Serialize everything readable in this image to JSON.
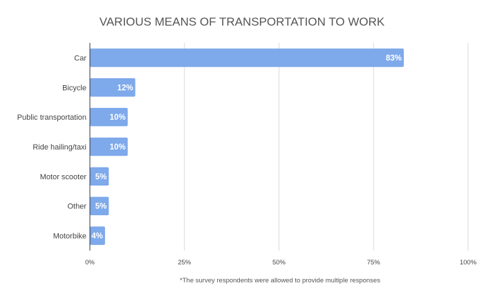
{
  "chart_data": {
    "type": "bar",
    "orientation": "horizontal",
    "title": "VARIOUS MEANS OF TRANSPORTATION TO WORK",
    "categories": [
      "Car",
      "Bicycle",
      "Public transportation",
      "Ride hailing/taxi",
      "Motor scooter",
      "Other",
      "Motorbike"
    ],
    "values": [
      83,
      12,
      10,
      10,
      5,
      5,
      4
    ],
    "value_labels": [
      "83%",
      "12%",
      "10%",
      "10%",
      "5%",
      "5%",
      "4%"
    ],
    "xlim": [
      0,
      100
    ],
    "xticks": [
      0,
      25,
      50,
      75,
      100
    ],
    "xtick_labels": [
      "0%",
      "25%",
      "50%",
      "75%",
      "100%"
    ],
    "grid": true,
    "bar_color": "#7ea9ea",
    "footnote": "*The survey respondents were allowed to provide multiple responses"
  }
}
